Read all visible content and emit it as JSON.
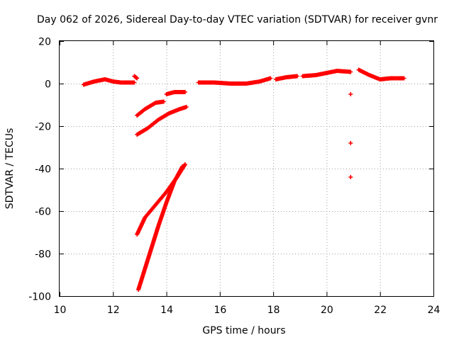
{
  "chart_data": {
    "type": "scatter",
    "title": "Day 062 of 2026, Sidereal Day-to-day VTEC variation (SDTVAR) for receiver gvnr",
    "xlabel": "GPS time / hours",
    "ylabel": "SDTVAR / TECUs",
    "xlim": [
      10,
      24
    ],
    "ylim": [
      -100,
      20
    ],
    "xticks": [
      10,
      12,
      14,
      16,
      18,
      20,
      22,
      24
    ],
    "yticks": [
      -100,
      -80,
      -60,
      -40,
      -20,
      0,
      20
    ],
    "xtick_labels": [
      "10",
      "12",
      "14",
      "16",
      "18",
      "20",
      "22",
      "24"
    ],
    "ytick_labels": [
      "-100",
      "-80",
      "-60",
      "-40",
      "-20",
      "0",
      "20"
    ],
    "grid": true,
    "marker_color": "#ff0000",
    "segments": [
      {
        "x": [
          10.9,
          11.3,
          11.7,
          12.0,
          12.3,
          12.8
        ],
        "y": [
          -0.5,
          1.0,
          2.0,
          1.0,
          0.5,
          0.5
        ]
      },
      {
        "x": [
          12.8,
          12.9
        ],
        "y": [
          3.5,
          2.5
        ]
      },
      {
        "x": [
          12.9,
          13.2,
          13.6,
          13.9
        ],
        "y": [
          -15,
          -12,
          -9,
          -8.5
        ]
      },
      {
        "x": [
          12.9,
          13.3,
          13.7,
          14.1,
          14.5,
          14.75
        ],
        "y": [
          -24,
          -21,
          -17,
          -14,
          -12,
          -11
        ]
      },
      {
        "x": [
          14.0,
          14.3,
          14.7
        ],
        "y": [
          -5,
          -4,
          -4
        ]
      },
      {
        "x": [
          12.9,
          13.2,
          13.6,
          14.0,
          14.4,
          14.7
        ],
        "y": [
          -71,
          -63,
          -57,
          -51,
          -44,
          -38
        ]
      },
      {
        "x": [
          12.95,
          13.3,
          13.7,
          14.0,
          14.3,
          14.6
        ],
        "y": [
          -97,
          -83,
          -67,
          -56,
          -46,
          -39
        ]
      },
      {
        "x": [
          15.2,
          15.8,
          16.4,
          17.0,
          17.5,
          17.9
        ],
        "y": [
          0.5,
          0.5,
          0,
          0,
          1.0,
          2.5
        ]
      },
      {
        "x": [
          18.1,
          18.5,
          18.9
        ],
        "y": [
          2.0,
          3.0,
          3.5
        ]
      },
      {
        "x": [
          19.1,
          19.6,
          20.0,
          20.4,
          20.9
        ],
        "y": [
          3.5,
          4.0,
          5.0,
          6.0,
          5.5
        ]
      },
      {
        "x": [
          21.2,
          21.6,
          22.0,
          22.4,
          22.9
        ],
        "y": [
          6.5,
          4.0,
          2.0,
          2.5,
          2.5
        ]
      },
      {
        "x": [
          20.9
        ],
        "y": [
          -5
        ]
      },
      {
        "x": [
          20.9
        ],
        "y": [
          -28
        ]
      },
      {
        "x": [
          20.9
        ],
        "y": [
          -44
        ]
      }
    ]
  }
}
